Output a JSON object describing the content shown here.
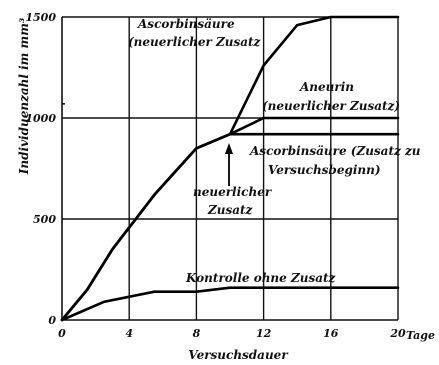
{
  "chart_data": {
    "type": "line",
    "xlabel": "Versuchsdauer",
    "ylabel": "Individuenzahl im mm³",
    "xlim": [
      0,
      20
    ],
    "ylim": [
      0,
      1500
    ],
    "x_ticks": [
      0,
      4,
      8,
      12,
      16,
      20
    ],
    "x_tick_labels": [
      "0",
      "4",
      "8",
      "12",
      "16",
      "20"
    ],
    "x_unit_label": "Tage",
    "y_ticks": [
      0,
      500,
      1000,
      1500
    ],
    "y_tick_labels": [
      "0",
      "500",
      "1000",
      "1500"
    ],
    "grid": true,
    "series": [
      {
        "name": "Ascorbinsäure (neuerlicher Zusatz)",
        "x": [
          0,
          1.5,
          3,
          5.5,
          8,
          10,
          12,
          14,
          16,
          20
        ],
        "y": [
          0,
          150,
          350,
          620,
          850,
          920,
          1260,
          1460,
          1500,
          1500
        ]
      },
      {
        "name": "Aneurin (neuerlicher Zusatz)",
        "x": [
          0,
          1.5,
          3,
          5.5,
          8,
          10,
          12,
          14,
          16,
          20
        ],
        "y": [
          0,
          150,
          350,
          620,
          850,
          920,
          1000,
          1000,
          1000,
          1000
        ]
      },
      {
        "name": "Ascorbinsäure (Zusatz zu Versuchsbeginn)",
        "x": [
          0,
          1.5,
          3,
          5.5,
          8,
          10,
          12,
          16,
          20
        ],
        "y": [
          0,
          150,
          350,
          620,
          850,
          920,
          920,
          920,
          920
        ]
      },
      {
        "name": "Kontrolle ohne Zusatz",
        "x": [
          0,
          2.5,
          5.5,
          8,
          10,
          12,
          16,
          20
        ],
        "y": [
          0,
          90,
          140,
          140,
          160,
          160,
          160,
          160
        ]
      }
    ],
    "annotations": {
      "ascorbin_neu_line1": "Ascorbinsäure",
      "ascorbin_neu_line2": "(neuerlicher Zusatz",
      "aneurin_line1": "Aneurin",
      "aneurin_line2": "(neuerlicher Zusatz)",
      "ascorbin_beginn_line1": "Ascorbinsäure (Zusatz zu",
      "ascorbin_beginn_line2": "Versuchsbeginn)",
      "neuerlicher_line1": "neuerlicher",
      "neuerlicher_line2": "Zusatz",
      "neuerlicher_arrow_x": 10,
      "kontrolle": "Kontrolle ohne Zusatz"
    }
  }
}
